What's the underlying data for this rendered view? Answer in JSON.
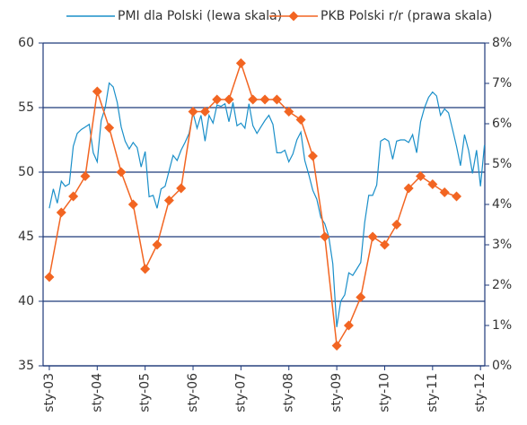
{
  "chart_data": {
    "type": "line",
    "legend": "top",
    "grid": true,
    "xlim": [
      2002.87,
      2012.09
    ],
    "xticks": [
      {
        "value": 2003,
        "label": "sty-03"
      },
      {
        "value": 2004,
        "label": "sty-04"
      },
      {
        "value": 2005,
        "label": "sty-05"
      },
      {
        "value": 2006,
        "label": "sty-06"
      },
      {
        "value": 2007,
        "label": "sty-07"
      },
      {
        "value": 2008,
        "label": "sty-08"
      },
      {
        "value": 2009,
        "label": "sty-09"
      },
      {
        "value": 2010,
        "label": "sty-10"
      },
      {
        "value": 2011,
        "label": "sty-11"
      },
      {
        "value": 2012,
        "label": "sty-12"
      }
    ],
    "ylim": [
      35,
      60
    ],
    "yticks": [
      35,
      40,
      45,
      50,
      55,
      60
    ],
    "y2lim": [
      0,
      8
    ],
    "y2ticks": [
      {
        "value": 0,
        "label": "0%"
      },
      {
        "value": 1,
        "label": "1%"
      },
      {
        "value": 2,
        "label": "2%"
      },
      {
        "value": 3,
        "label": "3%"
      },
      {
        "value": 4,
        "label": "4%"
      },
      {
        "value": 5,
        "label": "5%"
      },
      {
        "value": 6,
        "label": "6%"
      },
      {
        "value": 7,
        "label": "7%"
      },
      {
        "value": 8,
        "label": "8%"
      }
    ],
    "series": [
      {
        "name": "PMI dla Polski (lewa skala)",
        "color": "#1a8fc9",
        "axis": "y",
        "x": [
          2003,
          2003.083,
          2003.167,
          2003.25,
          2003.333,
          2003.417,
          2003.5,
          2003.583,
          2003.667,
          2003.75,
          2003.833,
          2003.917,
          2004,
          2004.083,
          2004.167,
          2004.25,
          2004.333,
          2004.417,
          2004.5,
          2004.583,
          2004.667,
          2004.75,
          2004.833,
          2004.917,
          2005,
          2005.083,
          2005.167,
          2005.25,
          2005.333,
          2005.417,
          2005.5,
          2005.583,
          2005.667,
          2005.75,
          2005.833,
          2005.917,
          2006,
          2006.083,
          2006.167,
          2006.25,
          2006.333,
          2006.417,
          2006.5,
          2006.583,
          2006.667,
          2006.75,
          2006.833,
          2006.917,
          2007,
          2007.083,
          2007.167,
          2007.25,
          2007.333,
          2007.417,
          2007.5,
          2007.583,
          2007.667,
          2007.75,
          2007.833,
          2007.917,
          2008,
          2008.083,
          2008.167,
          2008.25,
          2008.333,
          2008.417,
          2008.5,
          2008.583,
          2008.667,
          2008.75,
          2008.833,
          2008.917,
          2009,
          2009.083,
          2009.167,
          2009.25,
          2009.333,
          2009.417,
          2009.5,
          2009.583,
          2009.667,
          2009.75,
          2009.833,
          2009.917,
          2010,
          2010.083,
          2010.167,
          2010.25,
          2010.333,
          2010.417,
          2010.5,
          2010.583,
          2010.667,
          2010.75,
          2010.833,
          2010.917,
          2011,
          2011.083,
          2011.167,
          2011.25,
          2011.333,
          2011.417,
          2011.5,
          2011.583,
          2011.667,
          2011.75,
          2011.833,
          2011.917,
          2012,
          2012.083
        ],
        "values": [
          47.2,
          48.7,
          47.6,
          49.3,
          48.9,
          49.1,
          52.0,
          53.0,
          53.3,
          53.5,
          53.7,
          51.5,
          50.8,
          54.0,
          55.0,
          56.9,
          56.6,
          55.4,
          53.5,
          52.4,
          51.8,
          52.3,
          51.9,
          50.4,
          51.6,
          48.1,
          48.2,
          47.2,
          48.7,
          48.9,
          50.1,
          51.3,
          50.9,
          51.7,
          52.3,
          53.0,
          54.6,
          53.4,
          54.4,
          52.4,
          54.4,
          53.8,
          55.2,
          55.1,
          55.3,
          53.9,
          55.4,
          53.6,
          53.8,
          53.4,
          55.3,
          53.6,
          53.0,
          53.5,
          54.0,
          54.4,
          53.7,
          51.5,
          51.5,
          51.7,
          50.8,
          51.4,
          52.5,
          53.1,
          50.9,
          49.8,
          48.6,
          47.9,
          46.5,
          46.0,
          45.0,
          42.9,
          38.0,
          40.0,
          40.5,
          42.2,
          42.0,
          42.5,
          43.0,
          46.1,
          48.2,
          48.2,
          49.0,
          52.4,
          52.6,
          52.4,
          51.0,
          52.4,
          52.5,
          52.5,
          52.3,
          52.9,
          51.5,
          53.9,
          55.0,
          55.8,
          56.2,
          55.9,
          54.4,
          54.9,
          54.6,
          53.3,
          52.0,
          50.5,
          52.9,
          51.7,
          49.9,
          51.7,
          48.9,
          52.1
        ]
      },
      {
        "name": "PKB Polski r/r (prawa skala)",
        "color": "#f26522",
        "axis": "y2",
        "x": [
          2003,
          2003.25,
          2003.5,
          2003.75,
          2004,
          2004.25,
          2004.5,
          2004.75,
          2005,
          2005.25,
          2005.5,
          2005.75,
          2006,
          2006.25,
          2006.5,
          2006.75,
          2007,
          2007.25,
          2007.5,
          2007.75,
          2008,
          2008.25,
          2008.5,
          2008.75,
          2009,
          2009.25,
          2009.5,
          2009.75,
          2010,
          2010.25,
          2010.5,
          2010.75,
          2011,
          2011.25,
          2011.5
        ],
        "values": [
          2.2,
          3.8,
          4.2,
          4.7,
          6.8,
          5.9,
          4.8,
          4.0,
          2.4,
          3.0,
          4.1,
          4.4,
          6.3,
          6.3,
          6.6,
          6.6,
          7.5,
          6.6,
          6.6,
          6.6,
          6.3,
          6.1,
          5.2,
          3.2,
          0.5,
          1.0,
          1.7,
          3.2,
          3.0,
          3.5,
          4.4,
          4.7,
          4.5,
          4.3,
          4.2
        ]
      }
    ]
  }
}
